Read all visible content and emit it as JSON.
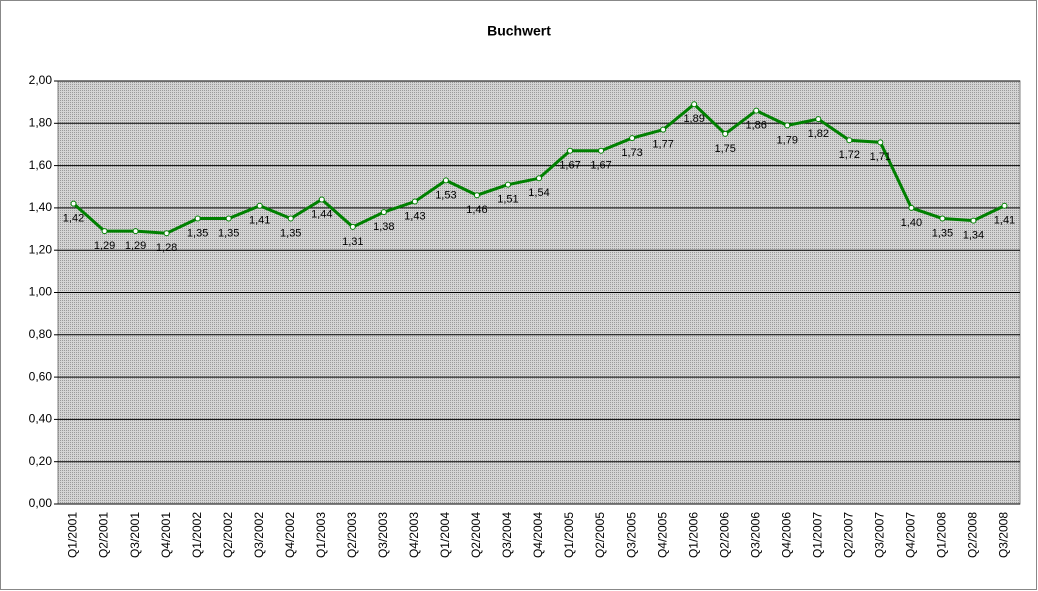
{
  "chart_data": {
    "type": "line",
    "title": "Buchwert",
    "categories": [
      "Q1/2001",
      "Q2/2001",
      "Q3/2001",
      "Q4/2001",
      "Q1/2002",
      "Q2/2002",
      "Q3/2002",
      "Q4/2002",
      "Q1/2003",
      "Q2/2003",
      "Q3/2003",
      "Q4/2003",
      "Q1/2004",
      "Q2/2004",
      "Q3/2004",
      "Q4/2004",
      "Q1/2005",
      "Q2/2005",
      "Q3/2005",
      "Q4/2005",
      "Q1/2006",
      "Q2/2006",
      "Q3/2006",
      "Q4/2006",
      "Q1/2007",
      "Q2/2007",
      "Q3/2007",
      "Q4/2007",
      "Q1/2008",
      "Q2/2008",
      "Q3/2008"
    ],
    "values": [
      1.42,
      1.29,
      1.29,
      1.28,
      1.35,
      1.35,
      1.41,
      1.35,
      1.44,
      1.31,
      1.38,
      1.43,
      1.53,
      1.46,
      1.51,
      1.54,
      1.67,
      1.67,
      1.73,
      1.77,
      1.89,
      1.75,
      1.86,
      1.79,
      1.82,
      1.72,
      1.71,
      1.4,
      1.35,
      1.34,
      1.41
    ],
    "value_labels": [
      "1,42",
      "1,29",
      "1,29",
      "1,28",
      "1,35",
      "1,35",
      "1,41",
      "1,35",
      "1,44",
      "1,31",
      "1,38",
      "1,43",
      "1,53",
      "1,46",
      "1,51",
      "1,54",
      "1,67",
      "1,67",
      "1,73",
      "1,77",
      "1,89",
      "1,75",
      "1,86",
      "1,79",
      "1,82",
      "1,72",
      "1,71",
      "1,40",
      "1,35",
      "1,34",
      "1,41"
    ],
    "color": "#008000",
    "ylim": [
      0,
      2
    ],
    "yticks": [
      {
        "value": 0,
        "label": "0,00"
      },
      {
        "value": 0.2,
        "label": "0,20"
      },
      {
        "value": 0.4,
        "label": "0,40"
      },
      {
        "value": 0.6,
        "label": "0,60"
      },
      {
        "value": 0.8,
        "label": "0,80"
      },
      {
        "value": 1,
        "label": "1,00"
      },
      {
        "value": 1.2,
        "label": "1,20"
      },
      {
        "value": 1.4,
        "label": "1,40"
      },
      {
        "value": 1.6,
        "label": "1,60"
      },
      {
        "value": 1.8,
        "label": "1,80"
      },
      {
        "value": 2,
        "label": "2,00"
      }
    ],
    "grid": true
  }
}
